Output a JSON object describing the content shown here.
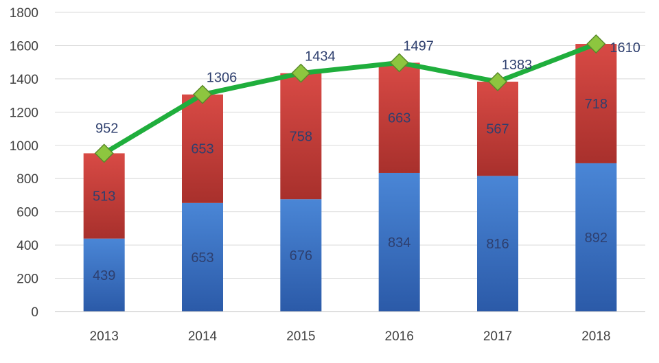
{
  "chart_data": {
    "type": "bar",
    "stacked": true,
    "categories": [
      "2013",
      "2014",
      "2015",
      "2016",
      "2017",
      "2018"
    ],
    "series": [
      {
        "values": [
          439,
          653,
          676,
          834,
          816,
          892
        ],
        "color": "#3d74c4"
      },
      {
        "values": [
          513,
          653,
          758,
          663,
          567,
          718
        ],
        "color": "#c63a37"
      }
    ],
    "line_series": {
      "values": [
        952,
        1306,
        1434,
        1497,
        1383,
        1610
      ],
      "color": "#1fae3c",
      "marker_color": "#8dc63f"
    },
    "title": "",
    "xlabel": "",
    "ylabel": "",
    "ylim": [
      0,
      1800
    ],
    "yticks": [
      0,
      200,
      400,
      600,
      800,
      1000,
      1200,
      1400,
      1600,
      1800
    ],
    "grid": true,
    "legend": "none"
  }
}
